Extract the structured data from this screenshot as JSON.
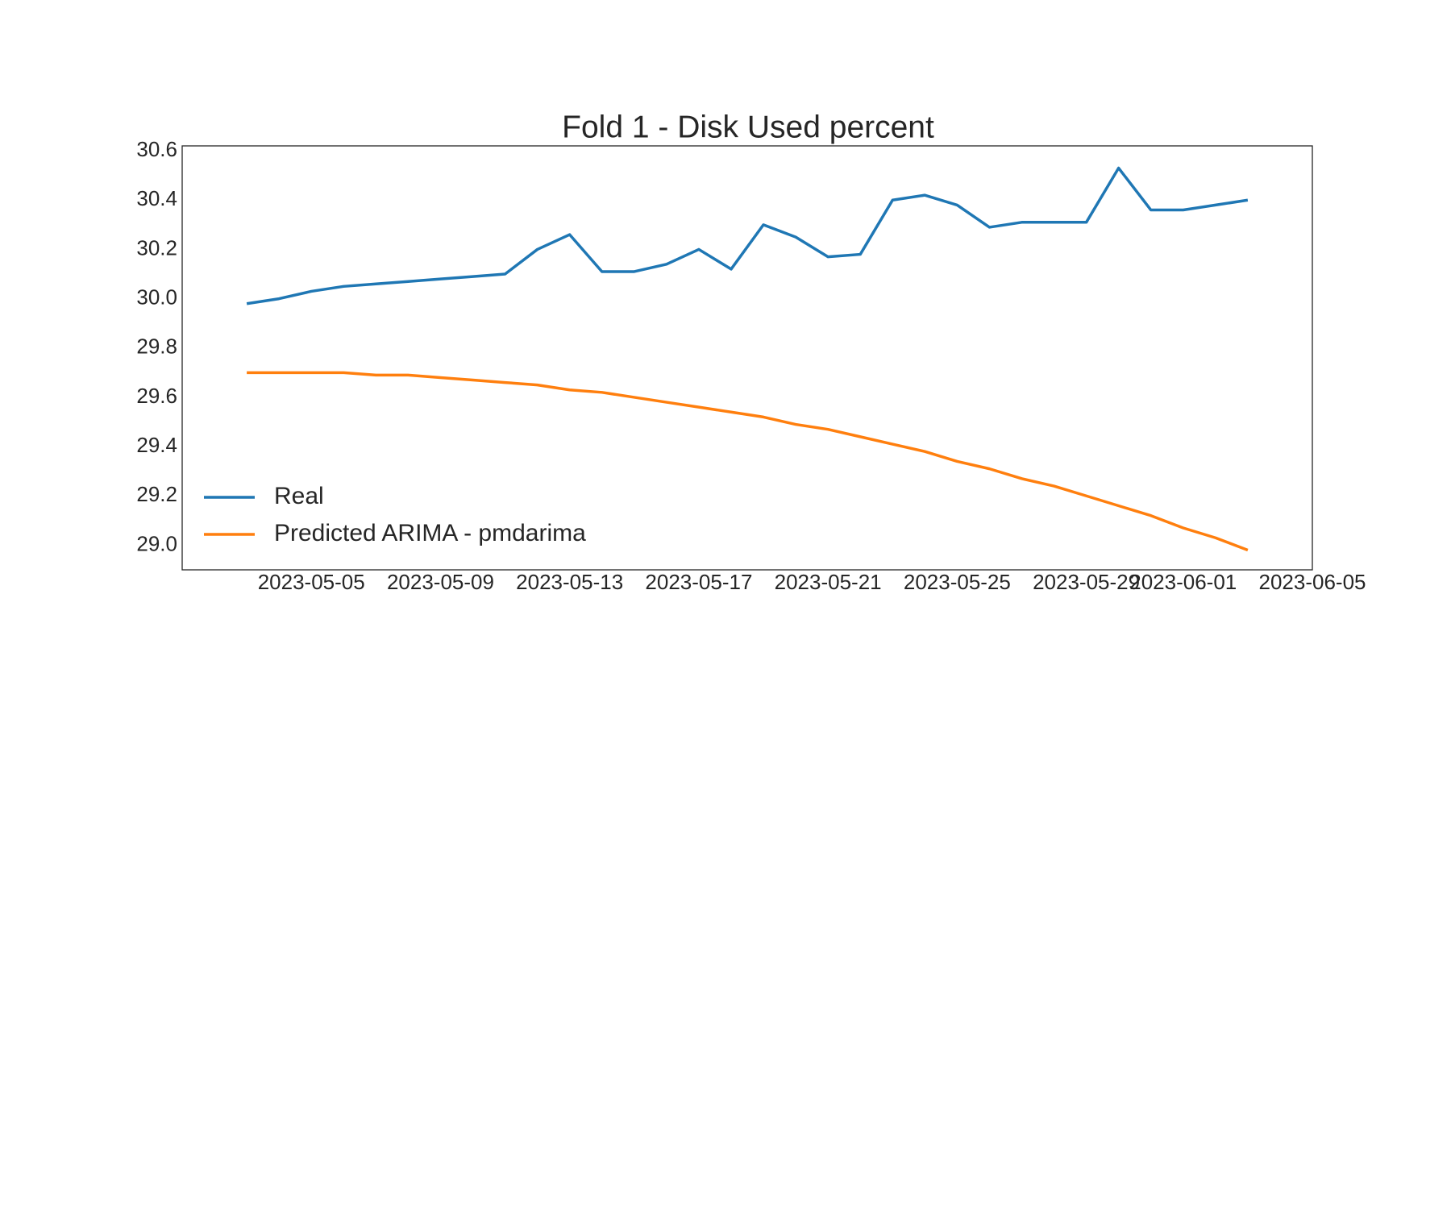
{
  "chart_data": {
    "type": "line",
    "title": "Fold 1 - Disk Used percent",
    "x": [
      "2023-05-03",
      "2023-05-04",
      "2023-05-05",
      "2023-05-06",
      "2023-05-07",
      "2023-05-08",
      "2023-05-09",
      "2023-05-10",
      "2023-05-11",
      "2023-05-12",
      "2023-05-13",
      "2023-05-14",
      "2023-05-15",
      "2023-05-16",
      "2023-05-17",
      "2023-05-18",
      "2023-05-19",
      "2023-05-20",
      "2023-05-21",
      "2023-05-22",
      "2023-05-23",
      "2023-05-24",
      "2023-05-25",
      "2023-05-26",
      "2023-05-27",
      "2023-05-28",
      "2023-05-29",
      "2023-05-30",
      "2023-05-31",
      "2023-06-01",
      "2023-06-02",
      "2023-06-03"
    ],
    "series": [
      {
        "name": "Real",
        "color": "#1f77b4",
        "values": [
          29.98,
          30.0,
          30.03,
          30.05,
          30.06,
          30.07,
          30.08,
          30.09,
          30.1,
          30.2,
          30.26,
          30.11,
          30.11,
          30.14,
          30.2,
          30.12,
          30.3,
          30.25,
          30.17,
          30.18,
          30.4,
          30.42,
          30.38,
          30.29,
          30.31,
          30.31,
          30.31,
          30.53,
          30.36,
          30.36,
          30.38,
          30.4
        ]
      },
      {
        "name": "Predicted ARIMA - pmdarima",
        "color": "#ff7f0e",
        "values": [
          29.7,
          29.7,
          29.7,
          29.7,
          29.69,
          29.69,
          29.68,
          29.67,
          29.66,
          29.65,
          29.63,
          29.62,
          29.6,
          29.58,
          29.56,
          29.54,
          29.52,
          29.49,
          29.47,
          29.44,
          29.41,
          29.38,
          29.34,
          29.31,
          29.27,
          29.24,
          29.2,
          29.16,
          29.12,
          29.07,
          29.03,
          28.98
        ]
      }
    ],
    "xlim": [
      "2023-05-01",
      "2023-06-05"
    ],
    "xticks": [
      "2023-05-05",
      "2023-05-09",
      "2023-05-13",
      "2023-05-17",
      "2023-05-21",
      "2023-05-25",
      "2023-05-29",
      "2023-06-01",
      "2023-06-05"
    ],
    "ylim": [
      28.9,
      30.62
    ],
    "yticks": [
      {
        "value": 29,
        "label": "29.0"
      },
      29.2,
      29.4,
      29.6,
      {
        "value": 29.8,
        "label": "29.8"
      },
      {
        "value": 30,
        "label": "30.0"
      },
      30.2,
      30.4,
      30.6
    ],
    "legend": "lower left",
    "grid": false
  }
}
